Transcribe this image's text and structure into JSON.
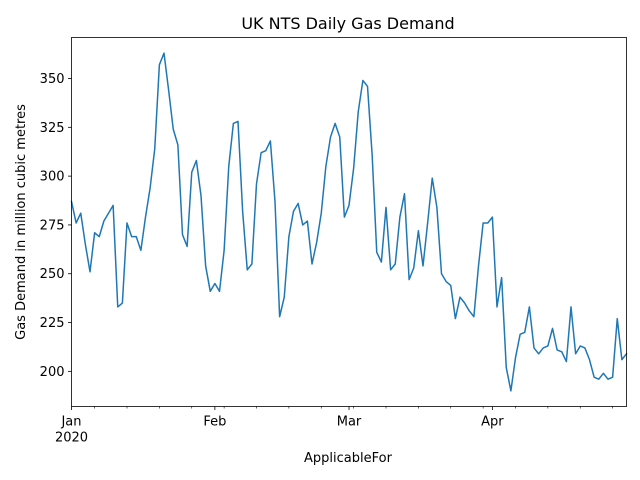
{
  "chart_data": {
    "type": "line",
    "title": "UK NTS Daily Gas Demand",
    "xlabel": "ApplicableFor",
    "ylabel": "Gas Demand in million cubic metres",
    "x_start": "2020-01-01",
    "x_end": "2020-04-30",
    "ylim": [
      182,
      371
    ],
    "y_ticks": [
      200,
      225,
      250,
      275,
      300,
      325,
      350
    ],
    "x_major_ticks": [
      {
        "date": "2020-01-01",
        "label": "Jan",
        "sublabel": "2020"
      },
      {
        "date": "2020-02-01",
        "label": "Feb",
        "sublabel": ""
      },
      {
        "date": "2020-03-01",
        "label": "Mar",
        "sublabel": ""
      },
      {
        "date": "2020-04-01",
        "label": "Apr",
        "sublabel": ""
      }
    ],
    "x_minor_ticks": [
      "2020-01-06",
      "2020-01-13",
      "2020-01-20",
      "2020-01-27",
      "2020-02-03",
      "2020-02-10",
      "2020-02-17",
      "2020-02-24",
      "2020-03-02",
      "2020-03-09",
      "2020-03-16",
      "2020-03-23",
      "2020-03-30",
      "2020-04-06",
      "2020-04-13",
      "2020-04-20",
      "2020-04-27"
    ],
    "grid": false,
    "series": [
      {
        "color": "#1f77b4",
        "dates": [
          "2020-01-01",
          "2020-01-02",
          "2020-01-03",
          "2020-01-04",
          "2020-01-05",
          "2020-01-06",
          "2020-01-07",
          "2020-01-08",
          "2020-01-09",
          "2020-01-10",
          "2020-01-11",
          "2020-01-12",
          "2020-01-13",
          "2020-01-14",
          "2020-01-15",
          "2020-01-16",
          "2020-01-17",
          "2020-01-18",
          "2020-01-19",
          "2020-01-20",
          "2020-01-21",
          "2020-01-22",
          "2020-01-23",
          "2020-01-24",
          "2020-01-25",
          "2020-01-26",
          "2020-01-27",
          "2020-01-28",
          "2020-01-29",
          "2020-01-30",
          "2020-01-31",
          "2020-02-01",
          "2020-02-02",
          "2020-02-03",
          "2020-02-04",
          "2020-02-05",
          "2020-02-06",
          "2020-02-07",
          "2020-02-08",
          "2020-02-09",
          "2020-02-10",
          "2020-02-11",
          "2020-02-12",
          "2020-02-13",
          "2020-02-14",
          "2020-02-15",
          "2020-02-16",
          "2020-02-17",
          "2020-02-18",
          "2020-02-19",
          "2020-02-20",
          "2020-02-21",
          "2020-02-22",
          "2020-02-23",
          "2020-02-24",
          "2020-02-25",
          "2020-02-26",
          "2020-02-27",
          "2020-02-28",
          "2020-02-29",
          "2020-03-01",
          "2020-03-02",
          "2020-03-03",
          "2020-03-04",
          "2020-03-05",
          "2020-03-06",
          "2020-03-07",
          "2020-03-08",
          "2020-03-09",
          "2020-03-10",
          "2020-03-11",
          "2020-03-12",
          "2020-03-13",
          "2020-03-14",
          "2020-03-15",
          "2020-03-16",
          "2020-03-17",
          "2020-03-18",
          "2020-03-19",
          "2020-03-20",
          "2020-03-21",
          "2020-03-22",
          "2020-03-23",
          "2020-03-24",
          "2020-03-25",
          "2020-03-26",
          "2020-03-27",
          "2020-03-28",
          "2020-03-29",
          "2020-03-30",
          "2020-03-31",
          "2020-04-01",
          "2020-04-02",
          "2020-04-03",
          "2020-04-04",
          "2020-04-05",
          "2020-04-06",
          "2020-04-07",
          "2020-04-08",
          "2020-04-09",
          "2020-04-10",
          "2020-04-11",
          "2020-04-12",
          "2020-04-13",
          "2020-04-14",
          "2020-04-15",
          "2020-04-16",
          "2020-04-17",
          "2020-04-18",
          "2020-04-19",
          "2020-04-20",
          "2020-04-21",
          "2020-04-22",
          "2020-04-23",
          "2020-04-24",
          "2020-04-25",
          "2020-04-26",
          "2020-04-27",
          "2020-04-28",
          "2020-04-29",
          "2020-04-30"
        ],
        "values": [
          287,
          276,
          281,
          265,
          251,
          271,
          269,
          277,
          281,
          285,
          233,
          235,
          276,
          269,
          269,
          262,
          279,
          294,
          314,
          357,
          363,
          344,
          324,
          316,
          270,
          264,
          302,
          308,
          290,
          254,
          241,
          245,
          241,
          262,
          305,
          327,
          328,
          282,
          252,
          255,
          296,
          312,
          313,
          318,
          287,
          228,
          238,
          269,
          282,
          286,
          275,
          277,
          255,
          266,
          281,
          305,
          320,
          327,
          320,
          279,
          285,
          304,
          333,
          349,
          346,
          311,
          261,
          256,
          284,
          252,
          255,
          279,
          291,
          247,
          253,
          272,
          254,
          276,
          299,
          284,
          250,
          246,
          244,
          227,
          238,
          235,
          231,
          228,
          254,
          276,
          276,
          279,
          233,
          248,
          202,
          190,
          207,
          219,
          220,
          233,
          212,
          209,
          212,
          213,
          222,
          211,
          210,
          205,
          233,
          209,
          213,
          212,
          206,
          197,
          196,
          199,
          196,
          197,
          227,
          206,
          209
        ]
      }
    ]
  }
}
